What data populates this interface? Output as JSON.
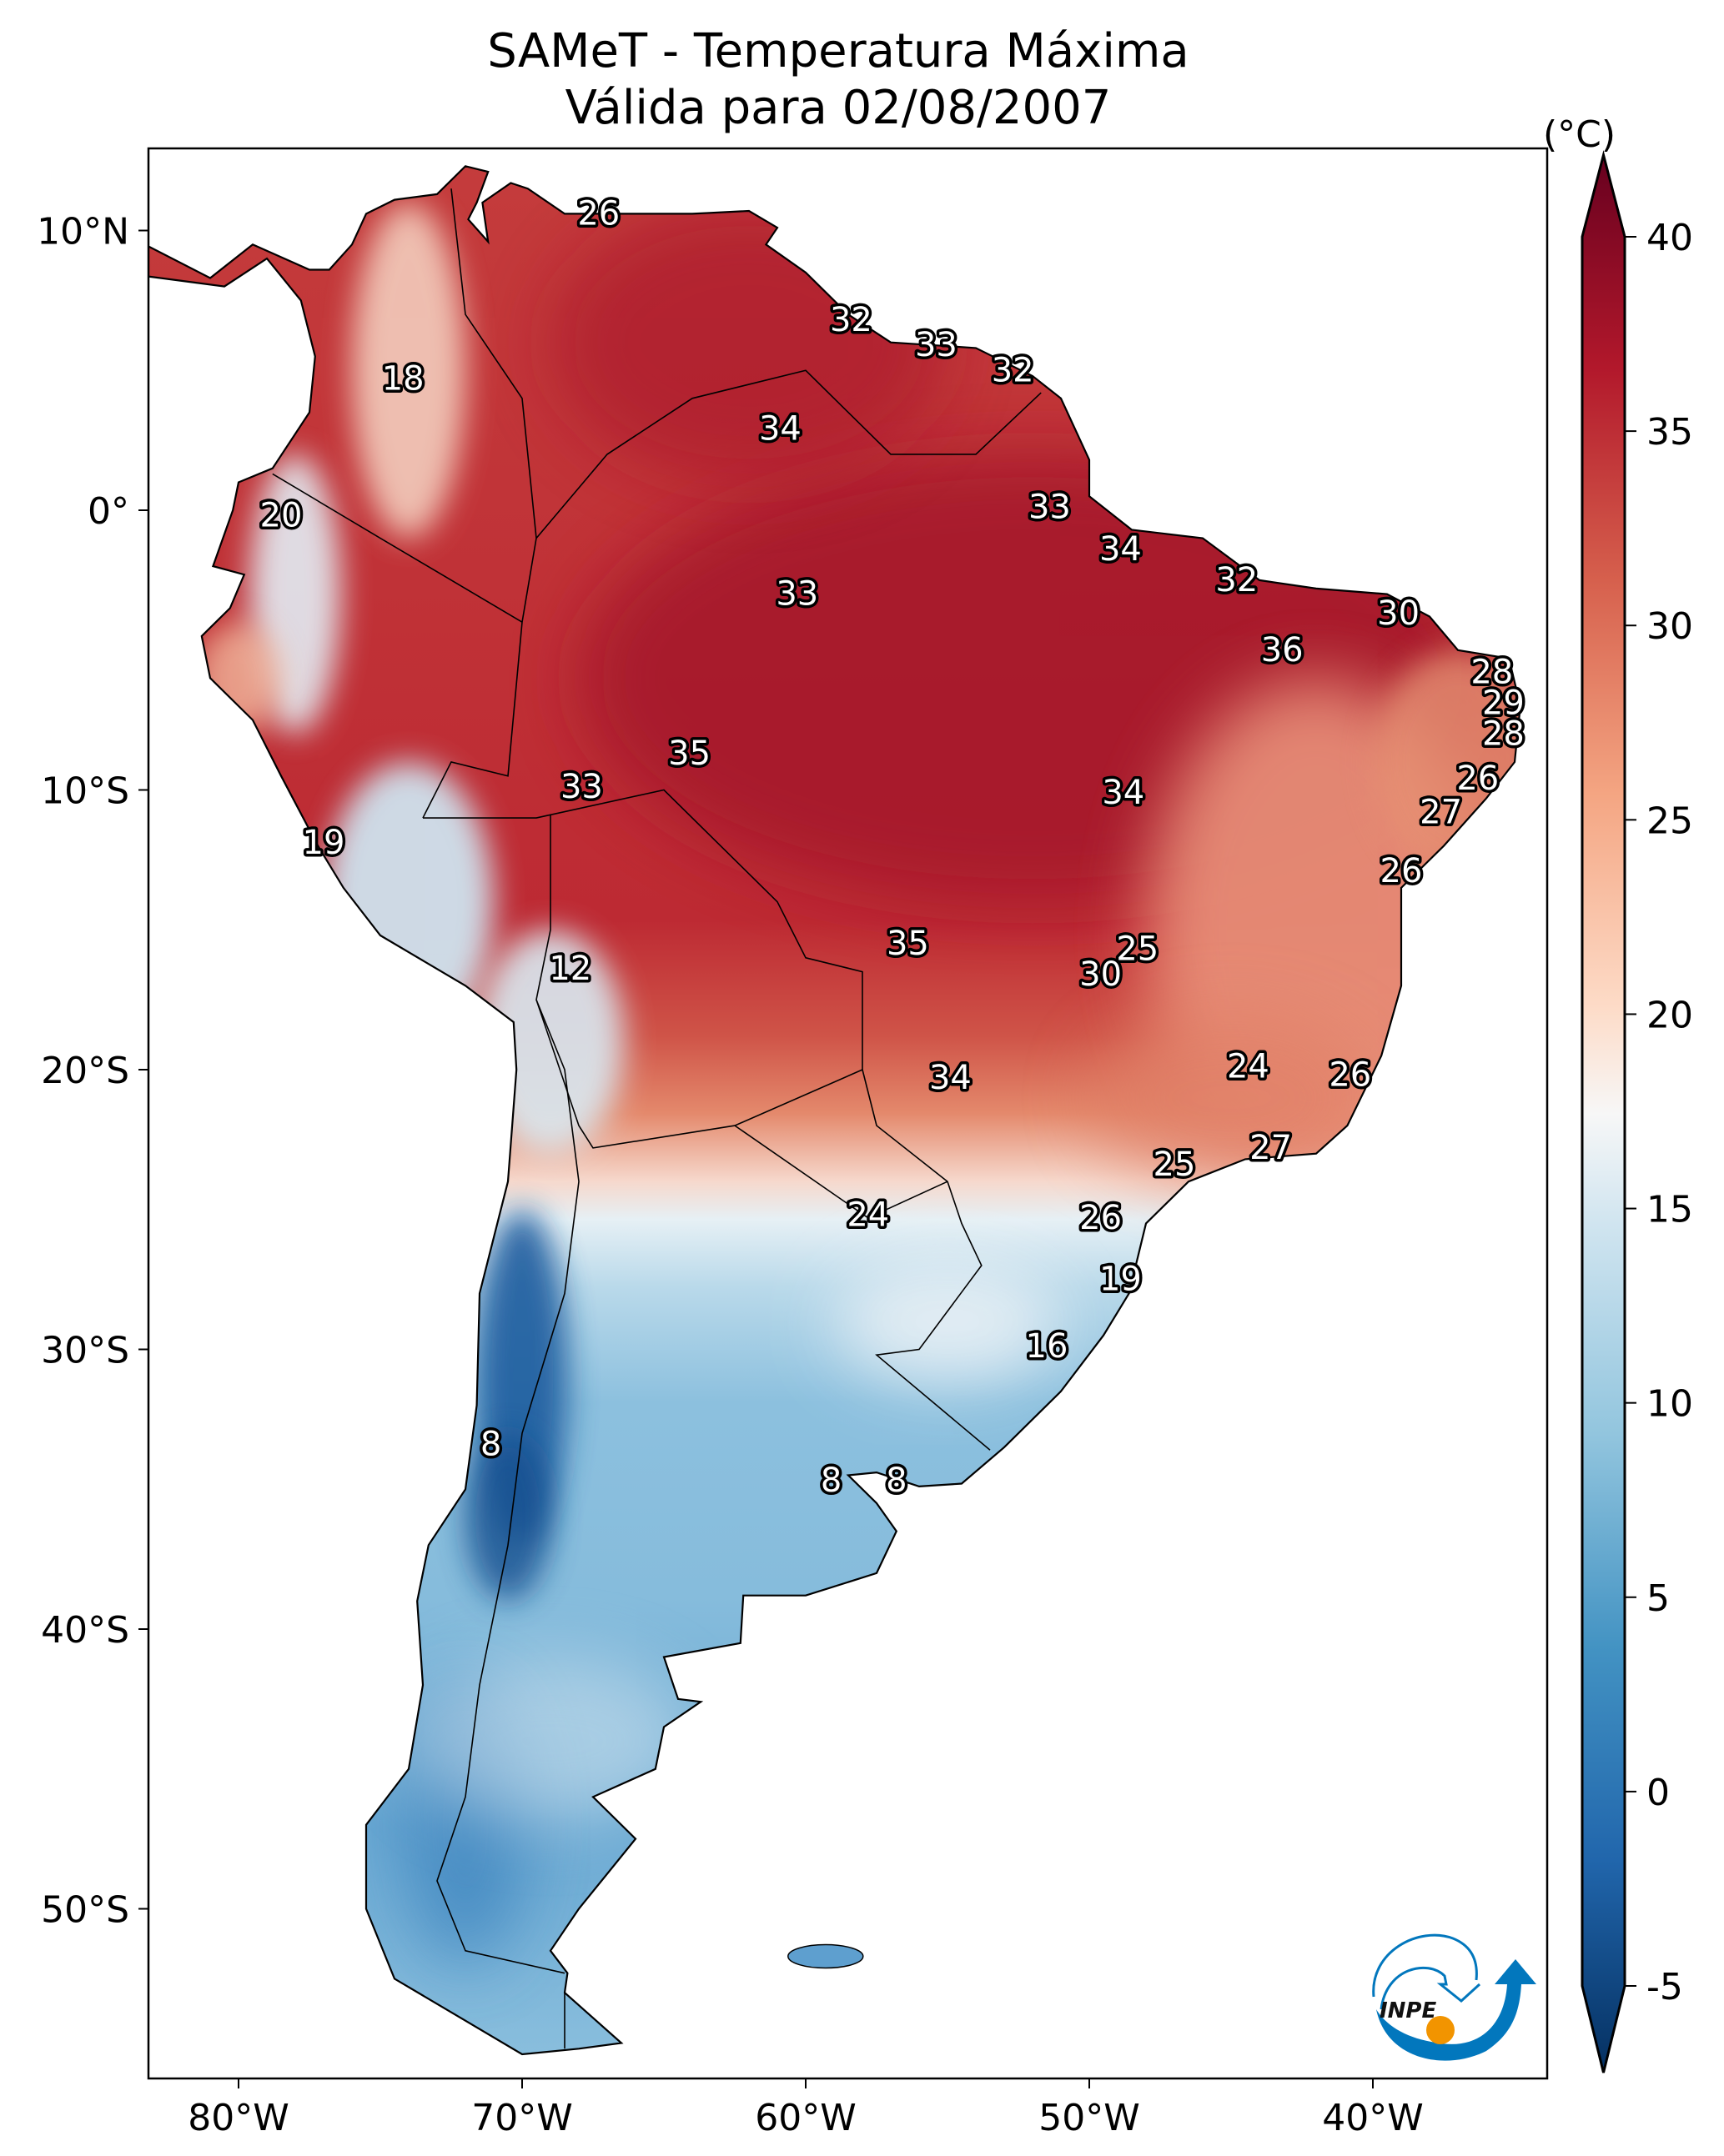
{
  "title": {
    "line1": "SAMeT - Temperatura Máxima",
    "line2": "Válida para 02/08/2007"
  },
  "logo": {
    "text": "INPE",
    "colors": {
      "blue": "#0277bd",
      "orange": "#f29400"
    }
  },
  "chart_data": {
    "type": "heatmap",
    "title": "SAMeT - Temperatura Máxima Válida para 02/08/2007",
    "variable": "Maximum temperature",
    "units_label": "(°C)",
    "lon_range": [
      -83.2,
      -33.8
    ],
    "lat_range": [
      -56.1,
      13.0
    ],
    "lon_ticks": [
      {
        "value": -80,
        "label": "80°W"
      },
      {
        "value": -70,
        "label": "70°W"
      },
      {
        "value": -60,
        "label": "60°W"
      },
      {
        "value": -50,
        "label": "50°W"
      },
      {
        "value": -40,
        "label": "40°W"
      }
    ],
    "lat_ticks": [
      {
        "value": 10,
        "label": "10°N"
      },
      {
        "value": 0,
        "label": "0°"
      },
      {
        "value": -10,
        "label": "10°S"
      },
      {
        "value": -20,
        "label": "20°S"
      },
      {
        "value": -30,
        "label": "30°S"
      },
      {
        "value": -40,
        "label": "40°S"
      },
      {
        "value": -50,
        "label": "50°S"
      }
    ],
    "colorbar": {
      "range": [
        -5,
        40
      ],
      "extend": "both",
      "colormap": "RdBu_r",
      "ticks": [
        {
          "value": 40,
          "label": "40"
        },
        {
          "value": 35,
          "label": "35"
        },
        {
          "value": 30,
          "label": "30"
        },
        {
          "value": 25,
          "label": "25"
        },
        {
          "value": 20,
          "label": "20"
        },
        {
          "value": 15,
          "label": "15"
        },
        {
          "value": 10,
          "label": "10"
        },
        {
          "value": 5,
          "label": "5"
        },
        {
          "value": 0,
          "label": "0"
        },
        {
          "value": -5,
          "label": "-5"
        }
      ]
    },
    "station_labels": [
      {
        "lon": -67.3,
        "lat": 10.6,
        "label": "26"
      },
      {
        "lon": -58.4,
        "lat": 6.8,
        "label": "32"
      },
      {
        "lon": -55.4,
        "lat": 5.9,
        "label": "33"
      },
      {
        "lon": -52.7,
        "lat": 5.0,
        "label": "32"
      },
      {
        "lon": -74.2,
        "lat": 4.7,
        "label": "18"
      },
      {
        "lon": -60.9,
        "lat": 2.9,
        "label": "34"
      },
      {
        "lon": -78.5,
        "lat": -0.2,
        "label": "20"
      },
      {
        "lon": -51.4,
        "lat": 0.1,
        "label": "33"
      },
      {
        "lon": -48.9,
        "lat": -1.4,
        "label": "34"
      },
      {
        "lon": -44.8,
        "lat": -2.5,
        "label": "32"
      },
      {
        "lon": -60.3,
        "lat": -3.0,
        "label": "33"
      },
      {
        "lon": -39.1,
        "lat": -3.7,
        "label": "30"
      },
      {
        "lon": -43.2,
        "lat": -5.0,
        "label": "36"
      },
      {
        "lon": -35.8,
        "lat": -5.8,
        "label": "28"
      },
      {
        "lon": -35.4,
        "lat": -6.9,
        "label": "29"
      },
      {
        "lon": -35.4,
        "lat": -8.0,
        "label": "28"
      },
      {
        "lon": -64.1,
        "lat": -8.7,
        "label": "35"
      },
      {
        "lon": -36.3,
        "lat": -9.6,
        "label": "26"
      },
      {
        "lon": -67.9,
        "lat": -9.9,
        "label": "33"
      },
      {
        "lon": -48.8,
        "lat": -10.1,
        "label": "34"
      },
      {
        "lon": -37.6,
        "lat": -10.8,
        "label": "27"
      },
      {
        "lon": -77.0,
        "lat": -11.9,
        "label": "19"
      },
      {
        "lon": -39.0,
        "lat": -12.9,
        "label": "26"
      },
      {
        "lon": -56.4,
        "lat": -15.5,
        "label": "35"
      },
      {
        "lon": -48.3,
        "lat": -15.7,
        "label": "25"
      },
      {
        "lon": -68.3,
        "lat": -16.4,
        "label": "12"
      },
      {
        "lon": -49.6,
        "lat": -16.6,
        "label": "30"
      },
      {
        "lon": -44.4,
        "lat": -19.9,
        "label": "24"
      },
      {
        "lon": -40.8,
        "lat": -20.2,
        "label": "26"
      },
      {
        "lon": -54.9,
        "lat": -20.3,
        "label": "34"
      },
      {
        "lon": -43.6,
        "lat": -22.8,
        "label": "27"
      },
      {
        "lon": -47.0,
        "lat": -23.4,
        "label": "25"
      },
      {
        "lon": -57.8,
        "lat": -25.2,
        "label": "24"
      },
      {
        "lon": -49.6,
        "lat": -25.3,
        "label": "26"
      },
      {
        "lon": -48.9,
        "lat": -27.5,
        "label": "19"
      },
      {
        "lon": -51.5,
        "lat": -29.9,
        "label": "16"
      },
      {
        "lon": -71.1,
        "lat": -33.4,
        "label": "8"
      },
      {
        "lon": -59.1,
        "lat": -34.7,
        "label": "8"
      },
      {
        "lon": -56.8,
        "lat": -34.7,
        "label": "8"
      }
    ]
  }
}
